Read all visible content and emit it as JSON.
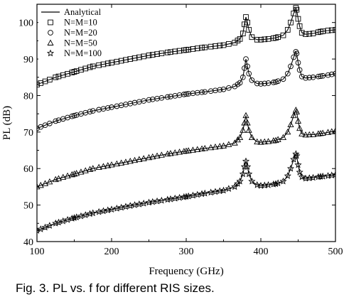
{
  "chart_data": {
    "type": "line",
    "xlabel": "Frequency (GHz)",
    "ylabel": "PL (dB)",
    "xlim": [
      100,
      500
    ],
    "ylim": [
      40,
      105
    ],
    "xticks": [
      100,
      200,
      300,
      400,
      500
    ],
    "yticks": [
      40,
      50,
      60,
      70,
      80,
      90,
      100
    ],
    "grid": false,
    "legend_position": "top-left",
    "analytical_label": "Analytical",
    "series": [
      {
        "name": "N=M=10",
        "marker": "square",
        "x": [
          100,
          125,
          150,
          175,
          200,
          225,
          250,
          275,
          300,
          325,
          350,
          365,
          372,
          376,
          378,
          380,
          382,
          384,
          388,
          395,
          400,
          410,
          420,
          430,
          436,
          440,
          444,
          447,
          448,
          450,
          452,
          455,
          460,
          470,
          480,
          490,
          500
        ],
        "values": [
          83,
          85,
          86.5,
          88,
          89,
          90,
          91,
          91.8,
          92.5,
          93.2,
          93.8,
          94.5,
          95.5,
          97,
          99.5,
          101.5,
          100,
          98,
          96,
          95.3,
          95.3,
          95.5,
          95.8,
          96.5,
          98,
          100,
          102.5,
          104,
          103.5,
          101,
          99,
          97.2,
          96.8,
          97,
          97.5,
          97.8,
          98
        ]
      },
      {
        "name": "N=M=20",
        "marker": "circle",
        "x": [
          100,
          125,
          150,
          175,
          200,
          225,
          250,
          275,
          300,
          325,
          350,
          365,
          372,
          376,
          378,
          380,
          382,
          384,
          388,
          395,
          400,
          410,
          420,
          430,
          436,
          440,
          444,
          447,
          448,
          450,
          452,
          455,
          460,
          470,
          480,
          490,
          500
        ],
        "values": [
          71,
          73,
          74.5,
          75.8,
          76.8,
          77.8,
          78.8,
          79.6,
          80.4,
          81,
          81.7,
          82.5,
          83.5,
          85,
          87.5,
          90,
          88,
          86,
          84.2,
          83.3,
          83.2,
          83.4,
          83.7,
          84.5,
          86,
          88,
          90.5,
          92,
          91.5,
          89,
          87,
          85.2,
          84.8,
          85,
          85.3,
          85.6,
          86
        ]
      },
      {
        "name": "N=M=50",
        "marker": "triangle",
        "x": [
          100,
          125,
          150,
          175,
          200,
          225,
          250,
          275,
          300,
          325,
          350,
          365,
          372,
          376,
          378,
          380,
          382,
          384,
          388,
          395,
          400,
          410,
          420,
          430,
          436,
          440,
          444,
          447,
          448,
          450,
          452,
          455,
          460,
          470,
          480,
          490,
          500
        ],
        "values": [
          55,
          57,
          58.5,
          60,
          61,
          62,
          63,
          64,
          64.8,
          65.5,
          66.2,
          67,
          68.5,
          70.5,
          72.5,
          74.5,
          72.5,
          70.5,
          68.5,
          67.3,
          67.2,
          67.4,
          67.7,
          68.5,
          70,
          72,
          74.5,
          76,
          75.5,
          73,
          71,
          69.5,
          69.2,
          69.3,
          69.6,
          69.9,
          70.3
        ]
      },
      {
        "name": "N=M=100",
        "marker": "star",
        "x": [
          100,
          125,
          150,
          175,
          200,
          225,
          250,
          275,
          300,
          325,
          350,
          365,
          372,
          376,
          378,
          380,
          382,
          384,
          388,
          395,
          400,
          410,
          420,
          430,
          436,
          440,
          444,
          447,
          448,
          450,
          452,
          455,
          460,
          470,
          480,
          490,
          500
        ],
        "values": [
          43,
          45,
          46.5,
          47.8,
          48.8,
          49.8,
          50.7,
          51.5,
          52.3,
          53.2,
          54,
          55,
          56.5,
          58.5,
          60.5,
          62,
          60.5,
          58.5,
          56.5,
          55.5,
          55.3,
          55.5,
          55.8,
          56.5,
          58,
          60,
          62.5,
          64,
          63.5,
          61,
          59,
          57.7,
          57.3,
          57.5,
          57.8,
          58,
          58.3
        ]
      }
    ]
  },
  "caption": "Fig. 3. PL vs. f for different RIS sizes."
}
